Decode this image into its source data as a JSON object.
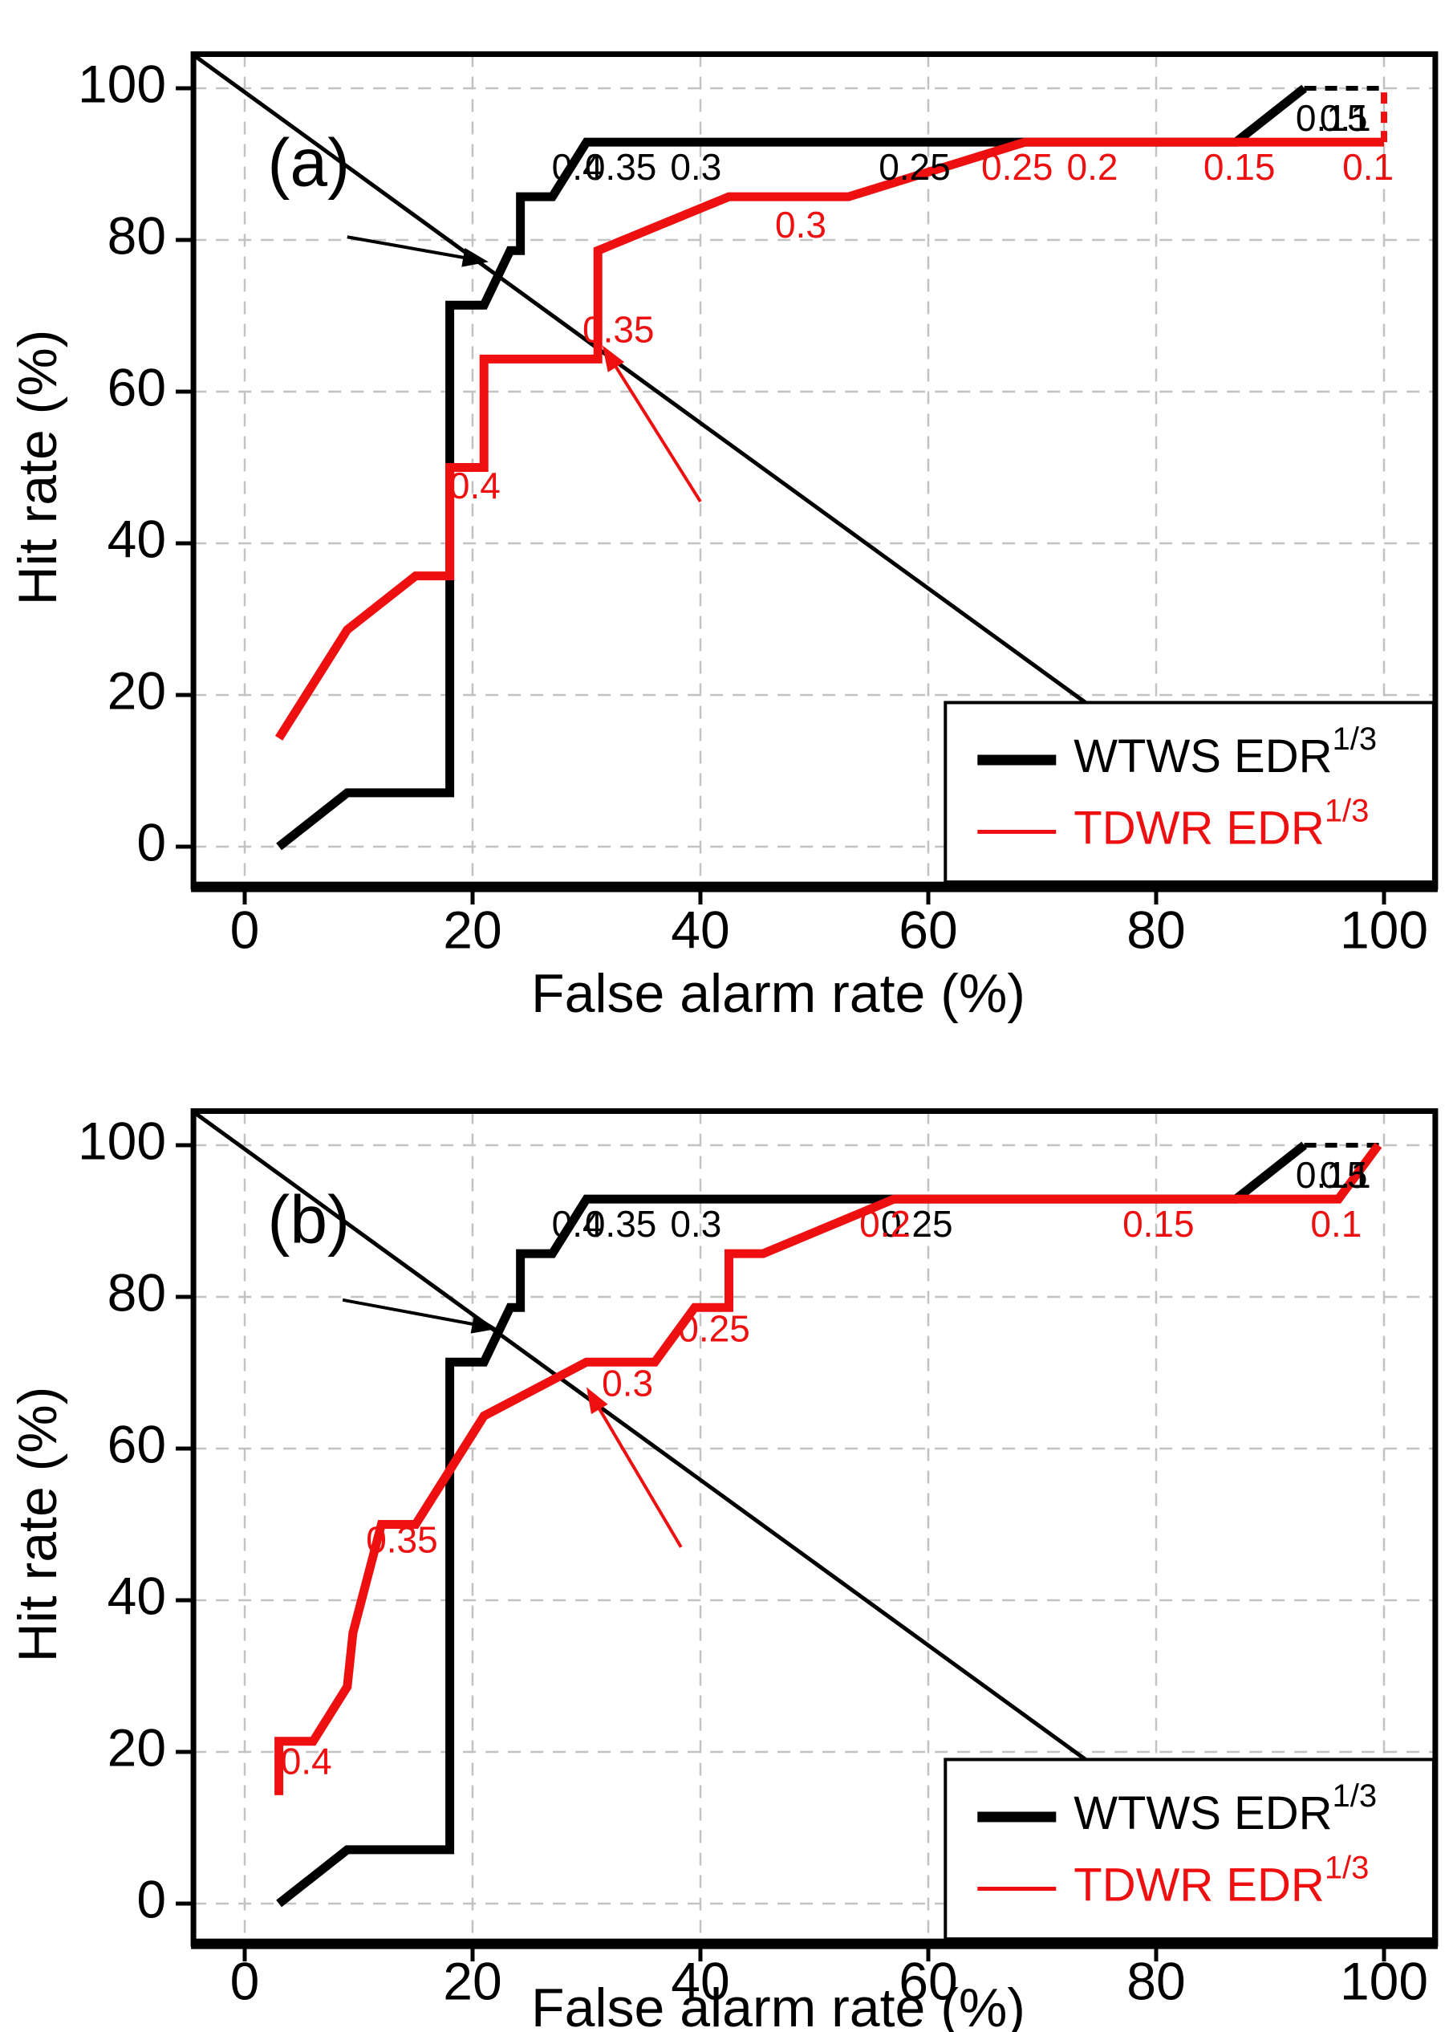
{
  "figure": {
    "background": "#ffffff",
    "grid_color": "#c2c2c2",
    "axis_color": "#000000",
    "xlabel": "False alarm rate (%)",
    "ylabel": "Hit rate (%)",
    "xticks": [
      0,
      20,
      40,
      60,
      80,
      100
    ],
    "yticks": [
      0,
      20,
      40,
      60,
      80,
      100
    ],
    "legend": {
      "entries": [
        {
          "label": "WTWS EDR",
          "sup": "1/3",
          "color": "#000000",
          "swatch_width": 13
        },
        {
          "label": "TDWR EDR",
          "sup": "1/3",
          "color": "#ee1010",
          "swatch_width": 5
        }
      ]
    }
  },
  "chart_data": [
    {
      "type": "line",
      "panel_label": "(a)",
      "xlabel": "False alarm rate (%)",
      "ylabel": "Hit rate (%)",
      "xlim": [
        -4.5,
        104.5
      ],
      "ylim": [
        -5.3,
        104.5
      ],
      "xticks": [
        0,
        20,
        40,
        60,
        80,
        100
      ],
      "yticks": [
        0,
        20,
        40,
        60,
        80,
        100
      ],
      "grid": true,
      "legend_position": "bottom-right",
      "series": [
        {
          "name": "WTWS EDR 1/3",
          "color": "#000000",
          "width": 11,
          "points": [
            [
              3,
              0
            ],
            [
              9,
              7.1
            ],
            [
              18,
              7.1
            ],
            [
              18,
              71.4
            ],
            [
              21,
              71.4
            ],
            [
              23.3,
              78.6
            ],
            [
              24.2,
              78.6
            ],
            [
              24.2,
              85.7
            ],
            [
              27,
              85.7
            ],
            [
              30,
              92.9
            ],
            [
              87,
              92.9
            ],
            [
              93,
              100
            ]
          ]
        },
        {
          "name": "WTWS EDR 1/3 dashed tail",
          "color": "#000000",
          "width": 6,
          "dash": "15 11",
          "points": [
            [
              93,
              100
            ],
            [
              100,
              100
            ]
          ]
        },
        {
          "name": "TDWR EDR 1/3",
          "color": "#ee1010",
          "width": 11,
          "points": [
            [
              3,
              14.3
            ],
            [
              9,
              28.6
            ],
            [
              15,
              35.7
            ],
            [
              18,
              35.7
            ],
            [
              18,
              50
            ],
            [
              21,
              50
            ],
            [
              21,
              64.3
            ],
            [
              31,
              64.3
            ],
            [
              31,
              78.6
            ],
            [
              42.5,
              85.7
            ],
            [
              53,
              85.7
            ],
            [
              68.5,
              92.9
            ],
            [
              100,
              92.9
            ]
          ]
        },
        {
          "name": "TDWR EDR 1/3 dashed tail",
          "color": "#ee1010",
          "width": 8,
          "dash": "14 10",
          "points": [
            [
              100,
              92.9
            ],
            [
              100,
              100
            ]
          ]
        }
      ],
      "diagonal": {
        "color": "#000000",
        "width": 5,
        "points": [
          [
            -4.5,
            104.4
          ],
          [
            73.8,
            19
          ]
        ]
      },
      "arrows": [
        {
          "color": "#000000",
          "from": [
            9,
            80.4
          ],
          "to": [
            21.4,
            77.1
          ]
        },
        {
          "color": "#ee1010",
          "from": [
            40,
            45.5
          ],
          "to": [
            31.4,
            66.1
          ]
        }
      ],
      "threshold_labels": {
        "black": [
          {
            "text": "0.4",
            "x": 29.2,
            "y": 89.2
          },
          {
            "text": "0.35",
            "x": 33.0,
            "y": 89.2
          },
          {
            "text": "0.3",
            "x": 39.6,
            "y": 89.2
          },
          {
            "text": "0.25",
            "x": 58.8,
            "y": 89.2
          },
          {
            "text": "0.15",
            "x": 95.4,
            "y": 95.7
          },
          {
            "text": "0.1",
            "x": 96.6,
            "y": 95.7
          }
        ],
        "red": [
          {
            "text": "0.4",
            "x": 20.2,
            "y": 47.2
          },
          {
            "text": "0.35",
            "x": 32.8,
            "y": 67.8
          },
          {
            "text": "0.3",
            "x": 48.8,
            "y": 81.6
          },
          {
            "text": "0.25",
            "x": 67.8,
            "y": 89.2
          },
          {
            "text": "0.2",
            "x": 74.4,
            "y": 89.2
          },
          {
            "text": "0.15",
            "x": 87.3,
            "y": 89.2
          },
          {
            "text": "0.1",
            "x": 98.6,
            "y": 89.2
          }
        ]
      }
    },
    {
      "type": "line",
      "panel_label": "(b)",
      "xlabel": "False alarm rate (%)",
      "ylabel": "Hit rate (%)",
      "xlim": [
        -4.5,
        104.5
      ],
      "ylim": [
        -5.3,
        104.5
      ],
      "xticks": [
        0,
        20,
        40,
        60,
        80,
        100
      ],
      "yticks": [
        0,
        20,
        40,
        60,
        80,
        100
      ],
      "grid": true,
      "legend_position": "bottom-right",
      "series": [
        {
          "name": "WTWS EDR 1/3",
          "color": "#000000",
          "width": 11,
          "points": [
            [
              3,
              0
            ],
            [
              9,
              7.1
            ],
            [
              18,
              7.1
            ],
            [
              18,
              71.4
            ],
            [
              21,
              71.4
            ],
            [
              23.3,
              78.6
            ],
            [
              24.2,
              78.6
            ],
            [
              24.2,
              85.7
            ],
            [
              27,
              85.7
            ],
            [
              30,
              92.9
            ],
            [
              87,
              92.9
            ],
            [
              93,
              100
            ]
          ]
        },
        {
          "name": "WTWS EDR 1/3 dashed tail",
          "color": "#000000",
          "width": 6,
          "dash": "15 11",
          "points": [
            [
              93,
              100
            ],
            [
              100,
              100
            ]
          ]
        },
        {
          "name": "TDWR EDR 1/3",
          "color": "#ee1010",
          "width": 11,
          "points": [
            [
              3,
              14.3
            ],
            [
              3,
              21.4
            ],
            [
              6,
              21.4
            ],
            [
              9,
              28.6
            ],
            [
              9.5,
              35.7
            ],
            [
              12,
              50
            ],
            [
              15,
              50
            ],
            [
              21,
              64.3
            ],
            [
              30,
              71.4
            ],
            [
              36,
              71.4
            ],
            [
              39.5,
              78.6
            ],
            [
              42.5,
              78.6
            ],
            [
              42.5,
              85.7
            ],
            [
              45.5,
              85.7
            ],
            [
              57,
              92.9
            ],
            [
              96,
              92.9
            ],
            [
              99.5,
              100
            ]
          ]
        }
      ],
      "diagonal": {
        "color": "#000000",
        "width": 5,
        "points": [
          [
            -4.5,
            104.4
          ],
          [
            73.8,
            19
          ]
        ]
      },
      "arrows": [
        {
          "color": "#000000",
          "from": [
            8.6,
            79.6
          ],
          "to": [
            22.2,
            75.8
          ]
        },
        {
          "color": "#ee1010",
          "from": [
            38.3,
            47.0
          ],
          "to": [
            30.0,
            68.1
          ]
        }
      ],
      "threshold_labels": {
        "black": [
          {
            "text": "0.4",
            "x": 29.2,
            "y": 89.2
          },
          {
            "text": "0.35",
            "x": 33.0,
            "y": 89.2
          },
          {
            "text": "0.3",
            "x": 39.6,
            "y": 89.2
          },
          {
            "text": "0.25",
            "x": 59.0,
            "y": 89.2
          },
          {
            "text": "0.15",
            "x": 95.4,
            "y": 95.7
          },
          {
            "text": "0.1",
            "x": 96.6,
            "y": 95.7
          }
        ],
        "red": [
          {
            "text": "0.4",
            "x": 5.4,
            "y": 18.4
          },
          {
            "text": "0.35",
            "x": 13.8,
            "y": 47.6
          },
          {
            "text": "0.3",
            "x": 33.6,
            "y": 68.2
          },
          {
            "text": "0.25",
            "x": 41.2,
            "y": 75.4
          },
          {
            "text": "0.2",
            "x": 56.2,
            "y": 89.2
          },
          {
            "text": "0.15",
            "x": 80.2,
            "y": 89.2
          },
          {
            "text": "0.1",
            "x": 95.8,
            "y": 89.2
          }
        ]
      }
    }
  ]
}
